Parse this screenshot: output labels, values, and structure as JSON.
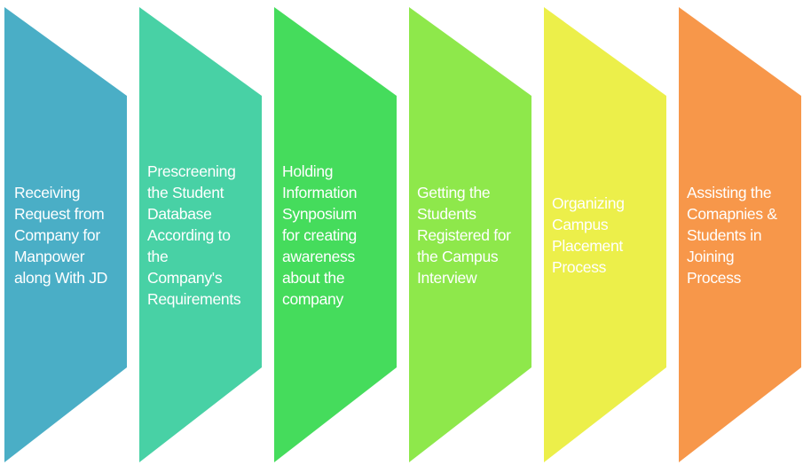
{
  "steps": [
    {
      "label": "Receiving\nRequest from\nCompany for\nManpower\nalong With JD",
      "color": "#4aaec6"
    },
    {
      "label": "Prescreening\nthe Student\nDatabase\nAccording to\nthe\nCompany's\nRequirements",
      "color": "#48d1a5"
    },
    {
      "label": "Holding\nInformation\nSynposium\nfor creating\nawareness\nabout the\ncompany",
      "color": "#45dc5c"
    },
    {
      "label": "Getting the\nStudents\nRegistered for\nthe Campus\nInterview",
      "color": "#8ee84b"
    },
    {
      "label": "Organizing\nCampus\nPlacement\nProcess",
      "color": "#ecef4a"
    },
    {
      "label": "Assisting the\nComapnies &\nStudents in\nJoining\nProcess",
      "color": "#f7974a"
    }
  ]
}
